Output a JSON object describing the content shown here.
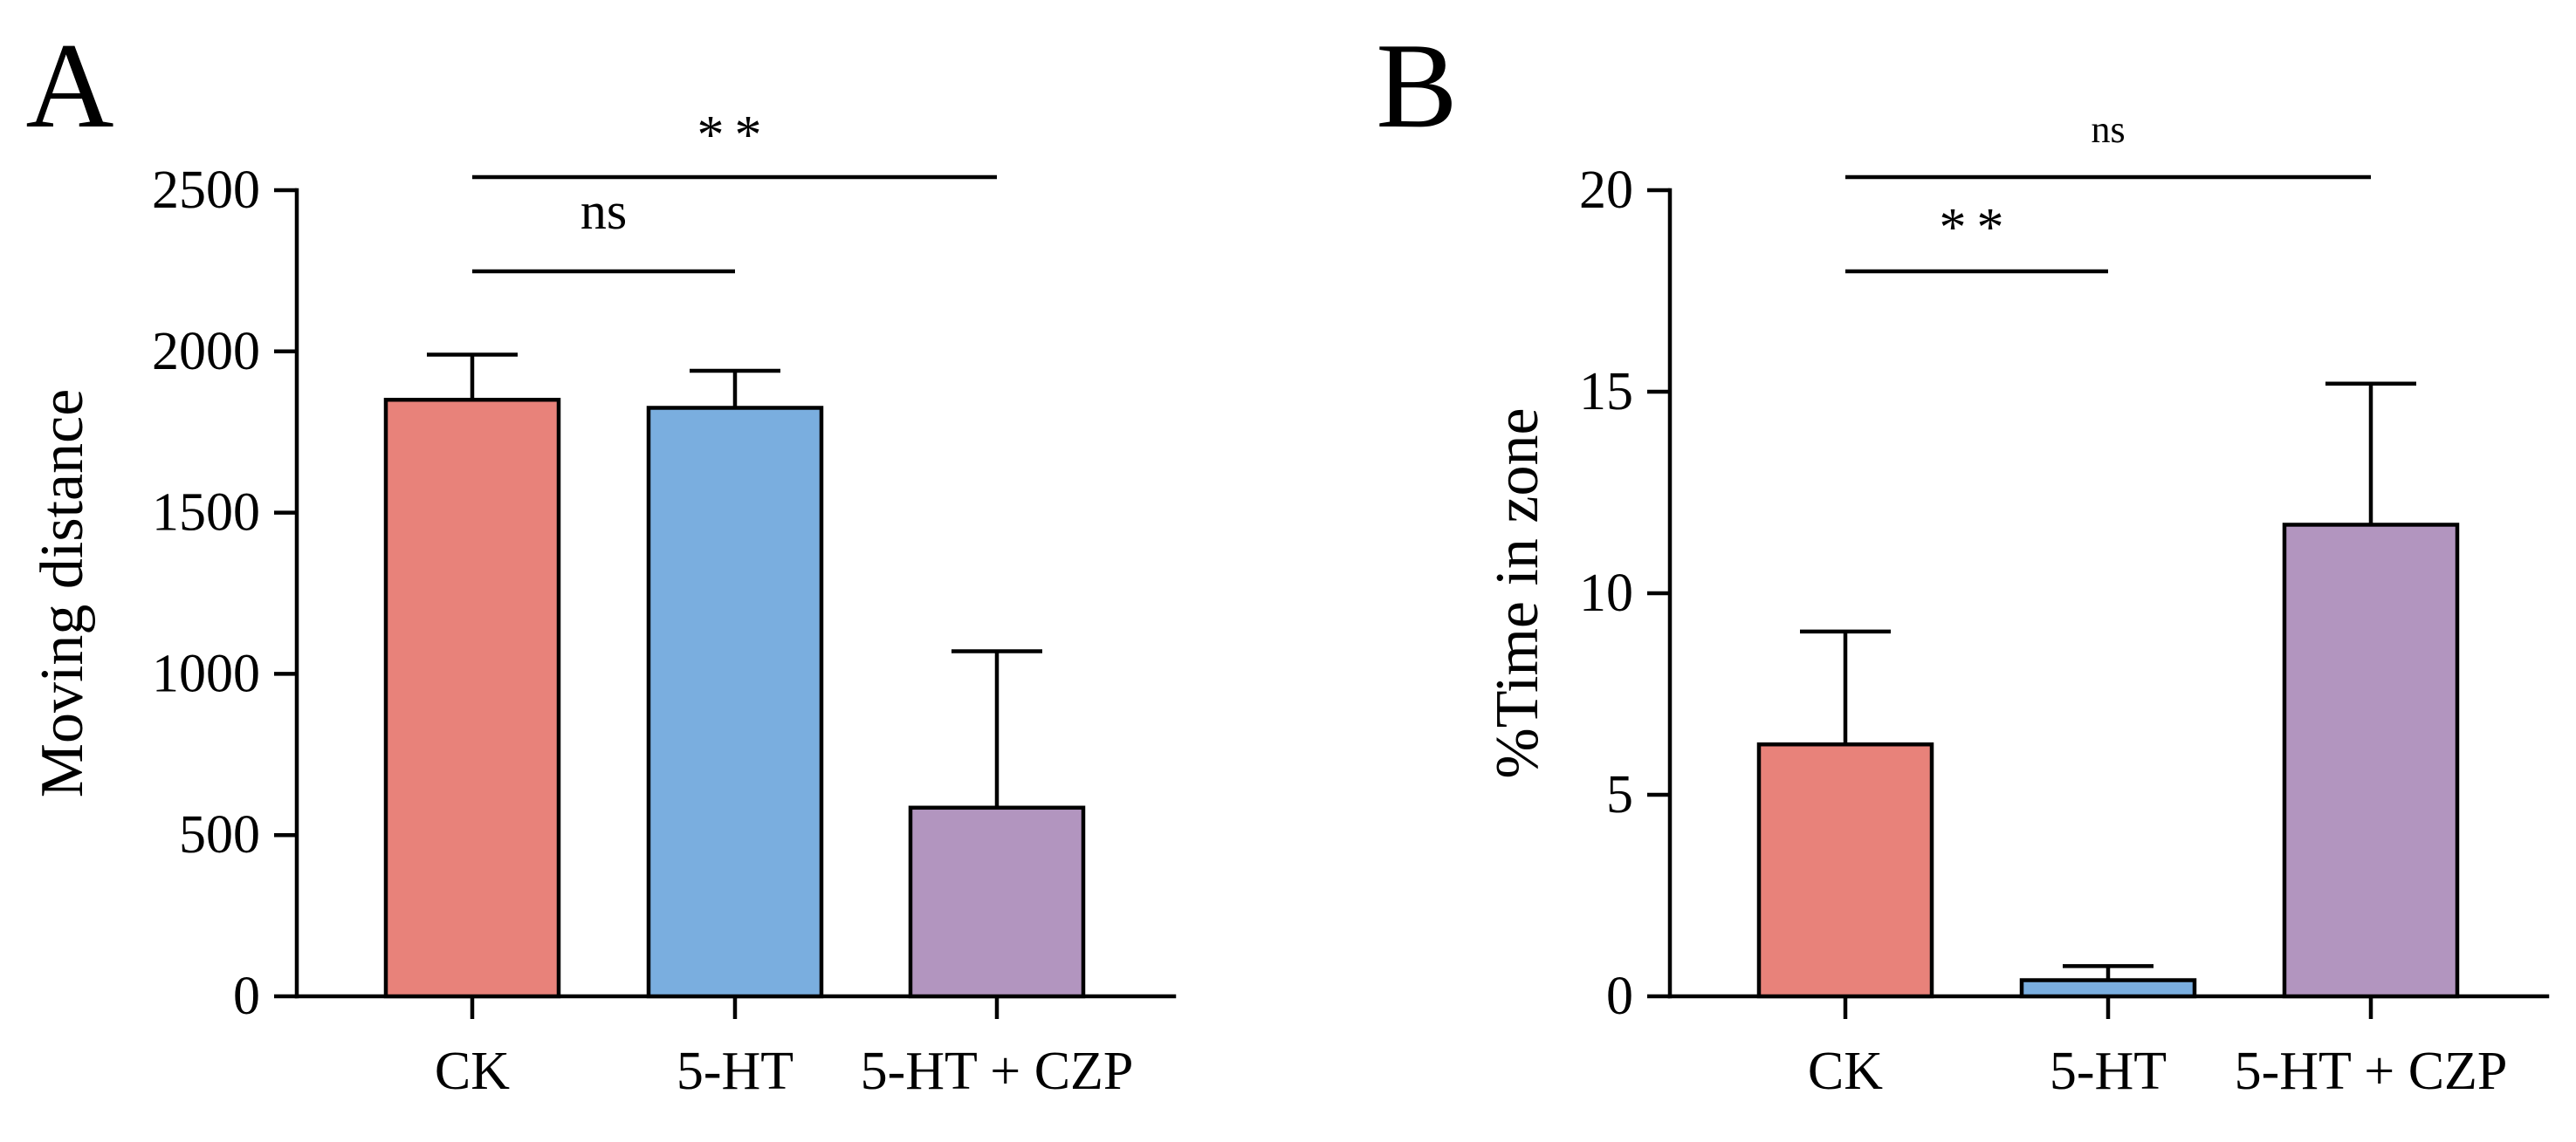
{
  "colors": {
    "CK": "#e8827a",
    "5-HT": "#7aaedf",
    "5-HT + CZP": "#b295bf"
  },
  "chart_data": [
    {
      "panel_label": "A",
      "type": "bar",
      "categories": [
        "CK",
        "5-HT",
        "5-HT + CZP"
      ],
      "values": [
        1850,
        1825,
        585
      ],
      "error_upper": [
        1990,
        1940,
        1070
      ],
      "ylabel": "Moving distance",
      "xlabel": "",
      "ylim": [
        0,
        2500
      ],
      "yticks": [
        0,
        500,
        1000,
        1500,
        2000,
        2500
      ],
      "significance": [
        {
          "from": "CK",
          "to": "5-HT",
          "label": "ns",
          "level": 1
        },
        {
          "from": "CK",
          "to": "5-HT + CZP",
          "label": "**",
          "level": 2
        }
      ]
    },
    {
      "panel_label": "B",
      "type": "bar",
      "categories": [
        "CK",
        "5-HT",
        "5-HT + CZP"
      ],
      "values": [
        6.25,
        0.4,
        11.7
      ],
      "error_upper": [
        9.05,
        0.75,
        15.2
      ],
      "ylabel": "%Time in zone",
      "xlabel": "",
      "ylim": [
        0,
        20
      ],
      "yticks": [
        0,
        5,
        10,
        15,
        20
      ],
      "significance": [
        {
          "from": "CK",
          "to": "5-HT",
          "label": "**",
          "level": 1
        },
        {
          "from": "CK",
          "to": "5-HT + CZP",
          "label": "ns",
          "level": 2
        }
      ]
    }
  ]
}
